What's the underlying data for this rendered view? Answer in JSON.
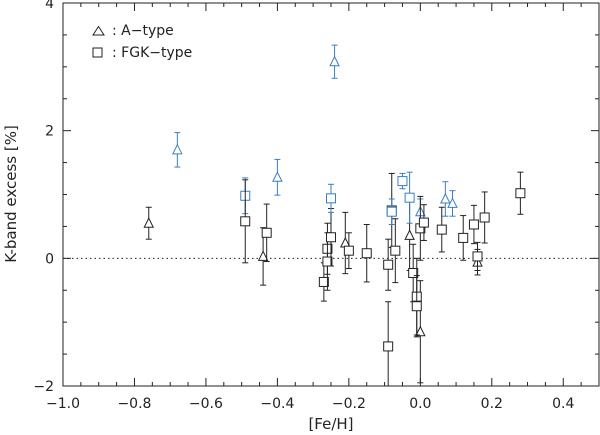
{
  "chart_data": {
    "type": "scatter",
    "xlabel": "[Fe/H]",
    "ylabel": "K-band excess [%]",
    "xlim": [
      -1.0,
      0.5
    ],
    "ylim": [
      -2,
      4
    ],
    "x_ticks": [
      -1.0,
      -0.8,
      -0.6,
      -0.4,
      -0.2,
      0.0,
      0.2,
      0.4
    ],
    "x_tick_labels": [
      "−1.0",
      "−0.8",
      "−0.6",
      "−0.4",
      "−0.2",
      "0.0",
      "0.2",
      "0.4"
    ],
    "y_ticks": [
      -2,
      0,
      2,
      4
    ],
    "y_tick_labels": [
      "−2",
      "0",
      "2",
      "4"
    ],
    "reference_line": {
      "y": 0,
      "style": "dotted"
    },
    "grid": false,
    "legend": {
      "placement": "top-left",
      "entries": [
        {
          "marker": "triangle",
          "label": ": A−type"
        },
        {
          "marker": "square",
          "label": ": FGK−type"
        }
      ]
    },
    "colors": {
      "significant": "#3a7fc1",
      "other": "#222222"
    },
    "series": [
      {
        "marker": "triangle",
        "points": [
          {
            "x": -0.76,
            "y": 0.55,
            "err": 0.25,
            "highlight": false
          },
          {
            "x": -0.68,
            "y": 1.7,
            "err": 0.27,
            "highlight": true
          },
          {
            "x": -0.44,
            "y": 0.03,
            "err": 0.45,
            "highlight": false
          },
          {
            "x": -0.4,
            "y": 1.27,
            "err": 0.28,
            "highlight": true
          },
          {
            "x": -0.24,
            "y": 3.08,
            "err": 0.26,
            "highlight": true
          },
          {
            "x": -0.21,
            "y": 0.24,
            "err": 0.48,
            "highlight": false
          },
          {
            "x": -0.03,
            "y": 0.36,
            "err": 0.55,
            "highlight": false
          },
          {
            "x": 0.0,
            "y": 0.73,
            "err": 0.2,
            "highlight": true
          },
          {
            "x": 0.0,
            "y": -1.15,
            "err": 0.8,
            "highlight": false
          },
          {
            "x": 0.07,
            "y": 0.93,
            "err": 0.27,
            "highlight": true
          },
          {
            "x": 0.09,
            "y": 0.86,
            "err": 0.2,
            "highlight": true
          },
          {
            "x": 0.16,
            "y": -0.06,
            "err": 0.2,
            "highlight": false
          }
        ]
      },
      {
        "marker": "square",
        "points": [
          {
            "x": -0.49,
            "y": 0.98,
            "err": 0.28,
            "highlight": true
          },
          {
            "x": -0.49,
            "y": 0.58,
            "err": 0.65,
            "highlight": false
          },
          {
            "x": -0.43,
            "y": 0.4,
            "err": 0.45,
            "highlight": false
          },
          {
            "x": -0.27,
            "y": -0.37,
            "err": 0.3,
            "highlight": false
          },
          {
            "x": -0.26,
            "y": 0.15,
            "err": 0.4,
            "highlight": false
          },
          {
            "x": -0.26,
            "y": -0.05,
            "err": 0.45,
            "highlight": false
          },
          {
            "x": -0.25,
            "y": 0.33,
            "err": 0.45,
            "highlight": false
          },
          {
            "x": -0.25,
            "y": 0.94,
            "err": 0.22,
            "highlight": true
          },
          {
            "x": -0.2,
            "y": 0.12,
            "err": 0.28,
            "highlight": false
          },
          {
            "x": -0.15,
            "y": 0.08,
            "err": 0.45,
            "highlight": false
          },
          {
            "x": -0.09,
            "y": -1.38,
            "err": 0.7,
            "highlight": false
          },
          {
            "x": -0.09,
            "y": -0.1,
            "err": 0.4,
            "highlight": false
          },
          {
            "x": -0.08,
            "y": 0.75,
            "err": 0.58,
            "highlight": false
          },
          {
            "x": -0.08,
            "y": 0.73,
            "err": 0.2,
            "highlight": true
          },
          {
            "x": -0.07,
            "y": 0.12,
            "err": 0.5,
            "highlight": false
          },
          {
            "x": -0.05,
            "y": 1.21,
            "err": 0.12,
            "highlight": true
          },
          {
            "x": -0.03,
            "y": 0.95,
            "err": 0.4,
            "highlight": true
          },
          {
            "x": -0.02,
            "y": -0.23,
            "err": 0.45,
            "highlight": false
          },
          {
            "x": -0.01,
            "y": -0.6,
            "err": 0.6,
            "highlight": false
          },
          {
            "x": -0.01,
            "y": -0.75,
            "err": 0.48,
            "highlight": false
          },
          {
            "x": 0.0,
            "y": 0.47,
            "err": 0.5,
            "highlight": false
          },
          {
            "x": 0.01,
            "y": 0.56,
            "err": 0.28,
            "highlight": false
          },
          {
            "x": 0.06,
            "y": 0.45,
            "err": 0.35,
            "highlight": false
          },
          {
            "x": 0.12,
            "y": 0.32,
            "err": 0.35,
            "highlight": false
          },
          {
            "x": 0.15,
            "y": 0.53,
            "err": 0.3,
            "highlight": false
          },
          {
            "x": 0.16,
            "y": 0.03,
            "err": 0.22,
            "highlight": false
          },
          {
            "x": 0.18,
            "y": 0.64,
            "err": 0.4,
            "highlight": false
          },
          {
            "x": 0.28,
            "y": 1.02,
            "err": 0.33,
            "highlight": false
          }
        ]
      }
    ]
  }
}
